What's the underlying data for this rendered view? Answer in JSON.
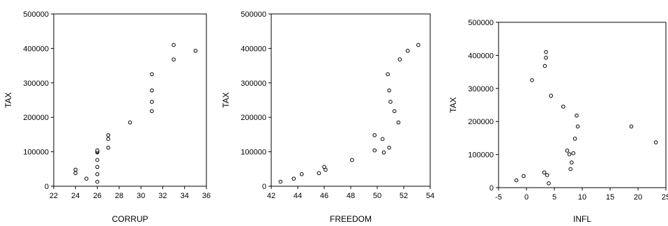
{
  "chart_data": [
    {
      "type": "scatter",
      "title": "",
      "xlabel": "CORRUP",
      "ylabel": "TAX",
      "xlim": [
        22,
        36
      ],
      "ylim": [
        0,
        500000
      ],
      "xticks": [
        "22",
        "24",
        "26",
        "28",
        "30",
        "32",
        "34",
        "36"
      ],
      "yticks": [
        "0",
        "100000",
        "200000",
        "300000",
        "400000",
        "500000"
      ],
      "grid": false,
      "series": [
        {
          "x": [
            24,
            24,
            25,
            26,
            26,
            26,
            26,
            26,
            26,
            26,
            27,
            27,
            27,
            29,
            31,
            31,
            31,
            31,
            33,
            33,
            35
          ],
          "y": [
            38000,
            48000,
            22000,
            13000,
            35000,
            56000,
            76000,
            98000,
            101000,
            104000,
            112000,
            137000,
            148000,
            185000,
            218000,
            245000,
            278000,
            325000,
            368000,
            410000,
            393000
          ]
        }
      ]
    },
    {
      "type": "scatter",
      "title": "",
      "xlabel": "FREEDOM",
      "ylabel": "TAX",
      "xlim": [
        42,
        54
      ],
      "ylim": [
        0,
        500000
      ],
      "xticks": [
        "42",
        "44",
        "46",
        "48",
        "50",
        "52",
        "54"
      ],
      "yticks": [
        "0",
        "100000",
        "200000",
        "300000",
        "400000",
        "500000"
      ],
      "grid": false,
      "series": [
        {
          "x": [
            42.7,
            43.7,
            44.3,
            45.6,
            46.1,
            46.0,
            48.1,
            49.8,
            50.4,
            49.8,
            50.5,
            50.9,
            51.6,
            51.0,
            51.3,
            50.9,
            50.8,
            51.7,
            52.3,
            53.1
          ],
          "y": [
            13000,
            22000,
            35000,
            38000,
            48000,
            56000,
            76000,
            104000,
            137000,
            148000,
            98000,
            112000,
            185000,
            245000,
            218000,
            278000,
            325000,
            368000,
            393000,
            410000
          ]
        }
      ]
    },
    {
      "type": "scatter",
      "title": "",
      "xlabel": "INFL",
      "ylabel": "TAX",
      "xlim": [
        -5,
        25
      ],
      "ylim": [
        0,
        500000
      ],
      "xticks": [
        "-5",
        "0",
        "5",
        "10",
        "15",
        "20",
        "25"
      ],
      "yticks": [
        "0",
        "100000",
        "200000",
        "300000",
        "400000",
        "500000"
      ],
      "grid": false,
      "series": [
        {
          "x": [
            -1.8,
            -0.5,
            3.2,
            3.7,
            4.0,
            1.0,
            3.3,
            3.5,
            3.5,
            4.4,
            6.6,
            7.3,
            7.7,
            8.4,
            7.9,
            8.1,
            8.7,
            9.0,
            9.2,
            18.8,
            23.2
          ],
          "y": [
            22000,
            35000,
            46000,
            38000,
            13000,
            325000,
            368000,
            393000,
            410000,
            278000,
            245000,
            112000,
            101000,
            104000,
            56000,
            76000,
            148000,
            218000,
            185000,
            185000,
            137000
          ]
        }
      ]
    }
  ]
}
